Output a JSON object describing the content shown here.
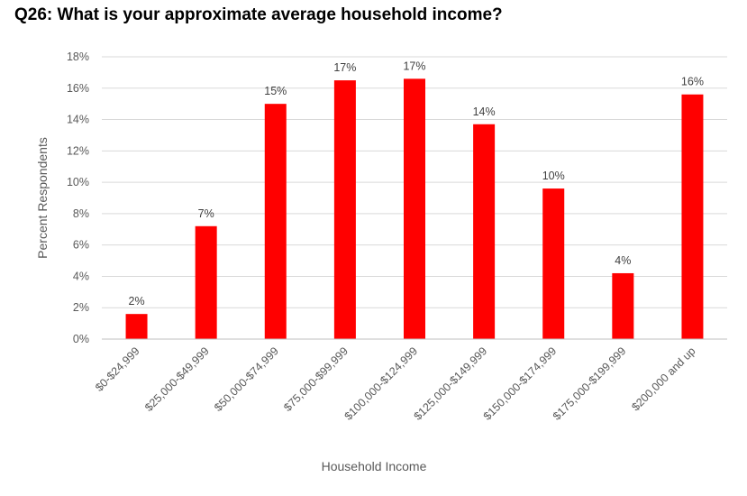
{
  "chart_data": {
    "type": "bar",
    "title": "Q26: What is your approximate average household income?",
    "xlabel": "Household Income",
    "ylabel": "Percent Respondents",
    "ylim": [
      0,
      18
    ],
    "yticks": [
      "0%",
      "2%",
      "4%",
      "6%",
      "8%",
      "10%",
      "12%",
      "14%",
      "16%",
      "18%"
    ],
    "grid": true,
    "legend": "none",
    "bar_color": "#ff0000",
    "categories": [
      "$0-$24,999",
      "$25,000-$49,999",
      "$50,000-$74,999",
      "$75,000-$99,999",
      "$100,000-$124,999",
      "$125,000-$149,999",
      "$150,000-$174,999",
      "$175,000-$199,999",
      "$200,000 and up"
    ],
    "values": [
      1.6,
      7.2,
      15.0,
      16.5,
      16.6,
      13.7,
      9.6,
      4.2,
      15.6
    ],
    "data_labels": [
      "2%",
      "7%",
      "15%",
      "17%",
      "17%",
      "14%",
      "10%",
      "4%",
      "16%"
    ]
  }
}
